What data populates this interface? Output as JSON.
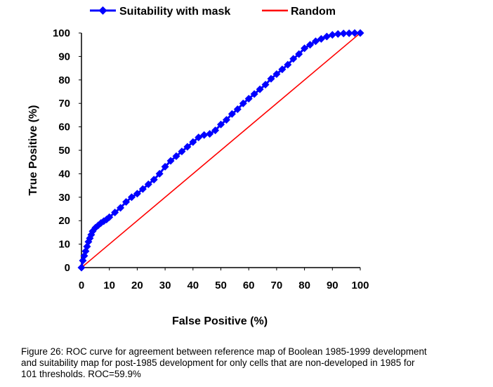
{
  "chart_data": {
    "type": "line",
    "xlabel": "False Positive (%)",
    "ylabel": "True Positive (%)",
    "xlim": [
      0,
      100
    ],
    "ylim": [
      0,
      100
    ],
    "xticks": [
      "0",
      "10",
      "20",
      "30",
      "40",
      "50",
      "60",
      "70",
      "80",
      "90",
      "100"
    ],
    "yticks": [
      "0",
      "10",
      "20",
      "30",
      "40",
      "50",
      "60",
      "70",
      "80",
      "90",
      "100"
    ],
    "grid": false,
    "legend_position": "top",
    "series": [
      {
        "name": "Suitability with mask",
        "color": "#0000ff",
        "marker": "diamond",
        "x": [
          0,
          0.5,
          1,
          1.5,
          2,
          2.5,
          3,
          3.5,
          4,
          5,
          6,
          7,
          8,
          9,
          10,
          12,
          14,
          16,
          18,
          20,
          22,
          24,
          26,
          28,
          30,
          32,
          34,
          36,
          38,
          40,
          42,
          44,
          46,
          48,
          50,
          52,
          54,
          56,
          58,
          60,
          62,
          64,
          66,
          68,
          70,
          72,
          74,
          76,
          78,
          80,
          82,
          84,
          86,
          88,
          90,
          92,
          94,
          96,
          98,
          100
        ],
        "y": [
          0,
          3,
          5,
          7,
          9,
          11,
          12.5,
          14,
          15.5,
          17,
          18,
          19,
          19.8,
          20.5,
          21.5,
          23.5,
          25.5,
          28,
          30,
          31.5,
          33.5,
          35.5,
          37.5,
          40,
          43,
          45.5,
          47.5,
          49.5,
          51.5,
          53.5,
          55.5,
          56.5,
          57,
          58.5,
          61,
          63,
          65.5,
          67.5,
          70,
          72,
          74,
          76,
          78,
          80.5,
          82.5,
          84.5,
          86.5,
          89,
          91,
          93.5,
          95,
          96.5,
          97.5,
          98.5,
          99.2,
          99.6,
          99.8,
          99.9,
          100,
          100
        ]
      },
      {
        "name": "Random",
        "color": "#ff0000",
        "x": [
          0,
          100
        ],
        "y": [
          0,
          100
        ]
      }
    ]
  },
  "caption": {
    "lines": [
      "Figure 26: ROC curve for agreement between reference map of Boolean 1985-1999 development",
      "and suitability map for post-1985 development for only cells that are non-developed in 1985 for",
      "101 thresholds. ROC=59.9%"
    ]
  }
}
